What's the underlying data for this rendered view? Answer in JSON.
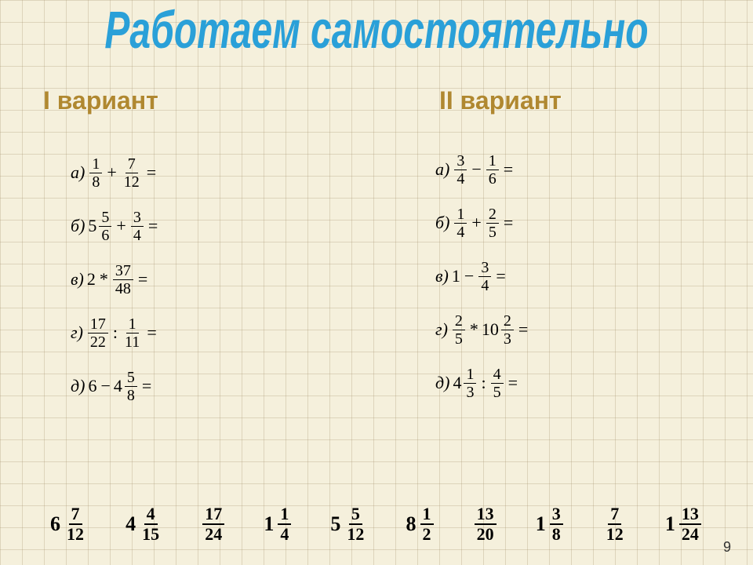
{
  "title": "Работаем самостоятельно",
  "variants": {
    "v1": "I вариант",
    "v2": "II вариант"
  },
  "col1": [
    {
      "letter": "а)",
      "parts": [
        {
          "t": "frac",
          "n": "1",
          "d": "8"
        },
        {
          "t": "op",
          "v": "+"
        },
        {
          "t": "frac",
          "n": "7",
          "d": "12"
        },
        {
          "t": "op",
          "v": "="
        }
      ]
    },
    {
      "letter": "б)",
      "parts": [
        {
          "t": "whole",
          "v": "5"
        },
        {
          "t": "frac",
          "n": "5",
          "d": "6"
        },
        {
          "t": "op",
          "v": "+"
        },
        {
          "t": "frac",
          "n": "3",
          "d": "4"
        },
        {
          "t": "op",
          "v": "="
        }
      ]
    },
    {
      "letter": "в)",
      "parts": [
        {
          "t": "whole",
          "v": "2"
        },
        {
          "t": "op",
          "v": "*"
        },
        {
          "t": "frac",
          "n": "37",
          "d": "48"
        },
        {
          "t": "op",
          "v": "="
        }
      ]
    },
    {
      "letter": "г)",
      "parts": [
        {
          "t": "frac",
          "n": "17",
          "d": "22"
        },
        {
          "t": "op",
          "v": ":"
        },
        {
          "t": "frac",
          "n": "1",
          "d": "11"
        },
        {
          "t": "op",
          "v": "="
        }
      ]
    },
    {
      "letter": "д)",
      "parts": [
        {
          "t": "whole",
          "v": "6"
        },
        {
          "t": "op",
          "v": "−"
        },
        {
          "t": "whole",
          "v": "4"
        },
        {
          "t": "frac",
          "n": "5",
          "d": "8"
        },
        {
          "t": "op",
          "v": "="
        }
      ]
    }
  ],
  "col2": [
    {
      "letter": "а)",
      "parts": [
        {
          "t": "frac",
          "n": "3",
          "d": "4"
        },
        {
          "t": "op",
          "v": "−"
        },
        {
          "t": "frac",
          "n": "1",
          "d": "6"
        },
        {
          "t": "op",
          "v": "="
        }
      ]
    },
    {
      "letter": "б)",
      "parts": [
        {
          "t": "frac",
          "n": "1",
          "d": "4"
        },
        {
          "t": "op",
          "v": "+"
        },
        {
          "t": "frac",
          "n": "2",
          "d": "5"
        },
        {
          "t": "op",
          "v": "="
        }
      ]
    },
    {
      "letter": "в)",
      "parts": [
        {
          "t": "whole",
          "v": "1"
        },
        {
          "t": "op",
          "v": "−"
        },
        {
          "t": "frac",
          "n": "3",
          "d": "4"
        },
        {
          "t": "op",
          "v": "="
        }
      ]
    },
    {
      "letter": "г)",
      "parts": [
        {
          "t": "frac",
          "n": "2",
          "d": "5"
        },
        {
          "t": "op",
          "v": "*"
        },
        {
          "t": "whole",
          "v": "10"
        },
        {
          "t": "frac",
          "n": "2",
          "d": "3"
        },
        {
          "t": "op",
          "v": "="
        }
      ]
    },
    {
      "letter": "д)",
      "parts": [
        {
          "t": "whole",
          "v": "4"
        },
        {
          "t": "frac",
          "n": "1",
          "d": "3"
        },
        {
          "t": "op",
          "v": ":"
        },
        {
          "t": "frac",
          "n": "4",
          "d": "5"
        },
        {
          "t": "op",
          "v": "="
        }
      ]
    }
  ],
  "answers": [
    {
      "w": "6",
      "n": "7",
      "d": "12"
    },
    {
      "w": "4",
      "n": "4",
      "d": "15"
    },
    {
      "w": "",
      "n": "17",
      "d": "24"
    },
    {
      "w": "1",
      "n": "1",
      "d": "4"
    },
    {
      "w": "5",
      "n": "5",
      "d": "12"
    },
    {
      "w": "8",
      "n": "1",
      "d": "2"
    },
    {
      "w": "",
      "n": "13",
      "d": "20"
    },
    {
      "w": "1",
      "n": "3",
      "d": "8"
    },
    {
      "w": "",
      "n": "7",
      "d": "12"
    },
    {
      "w": "1",
      "n": "13",
      "d": "24"
    }
  ],
  "pagenum": "9"
}
